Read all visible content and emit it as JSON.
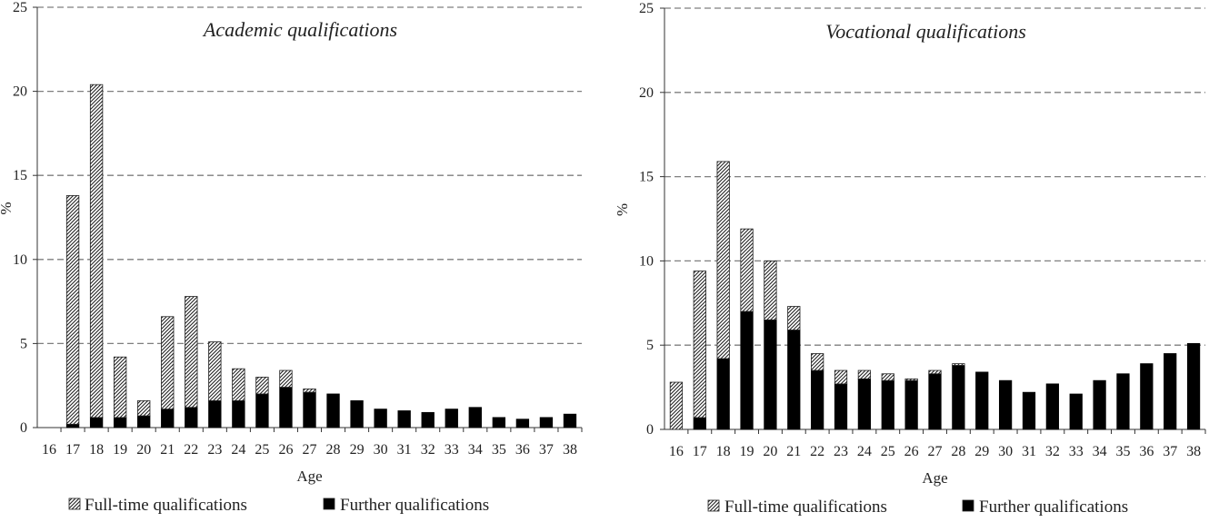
{
  "chart_data": [
    {
      "type": "bar",
      "stacked": true,
      "title": "Academic qualifications",
      "xlabel": "Age",
      "ylabel": "%",
      "ylim": [
        0,
        25
      ],
      "yticks": [
        0,
        5,
        10,
        15,
        20,
        25
      ],
      "grid": true,
      "legend_position": "bottom",
      "categories": [
        "16",
        "17",
        "18",
        "19",
        "20",
        "21",
        "22",
        "23",
        "24",
        "25",
        "26",
        "27",
        "28",
        "29",
        "30",
        "31",
        "32",
        "33",
        "34",
        "35",
        "36",
        "37",
        "38"
      ],
      "series": [
        {
          "name": "Further qualifications",
          "pattern": "solid",
          "values": [
            0,
            0.2,
            0.6,
            0.6,
            0.7,
            1.1,
            1.2,
            1.6,
            1.6,
            2.0,
            2.4,
            2.1,
            2.0,
            1.6,
            1.1,
            1.0,
            0.9,
            1.1,
            1.2,
            0.6,
            0.5,
            0.6,
            0.8
          ]
        },
        {
          "name": "Full-time qualifications",
          "pattern": "hatched",
          "values": [
            0,
            13.6,
            19.8,
            3.6,
            0.9,
            5.5,
            6.6,
            3.5,
            1.9,
            1.0,
            1.0,
            0.2,
            0,
            0,
            0,
            0,
            0,
            0,
            0,
            0,
            0,
            0,
            0
          ]
        }
      ]
    },
    {
      "type": "bar",
      "stacked": true,
      "title": "Vocational qualifications",
      "xlabel": "Age",
      "ylabel": "%",
      "ylim": [
        0,
        25
      ],
      "yticks": [
        0,
        5,
        10,
        15,
        20,
        25
      ],
      "grid": true,
      "legend_position": "bottom",
      "categories": [
        "16",
        "17",
        "18",
        "19",
        "20",
        "21",
        "22",
        "23",
        "24",
        "25",
        "26",
        "27",
        "28",
        "29",
        "30",
        "31",
        "32",
        "33",
        "34",
        "35",
        "36",
        "37",
        "38"
      ],
      "series": [
        {
          "name": "Further qualifications",
          "pattern": "solid",
          "values": [
            0,
            0.7,
            4.2,
            7.0,
            6.5,
            5.9,
            3.5,
            2.7,
            3.0,
            2.9,
            2.9,
            3.3,
            3.8,
            3.4,
            2.9,
            2.2,
            2.7,
            2.1,
            2.9,
            3.3,
            3.9,
            4.5,
            5.1
          ]
        },
        {
          "name": "Full-time qualifications",
          "pattern": "hatched",
          "values": [
            2.8,
            8.7,
            11.7,
            4.9,
            3.5,
            1.4,
            1.0,
            0.8,
            0.5,
            0.4,
            0.1,
            0.2,
            0.1,
            0,
            0,
            0,
            0,
            0,
            0,
            0,
            0,
            0,
            0
          ]
        }
      ]
    }
  ]
}
